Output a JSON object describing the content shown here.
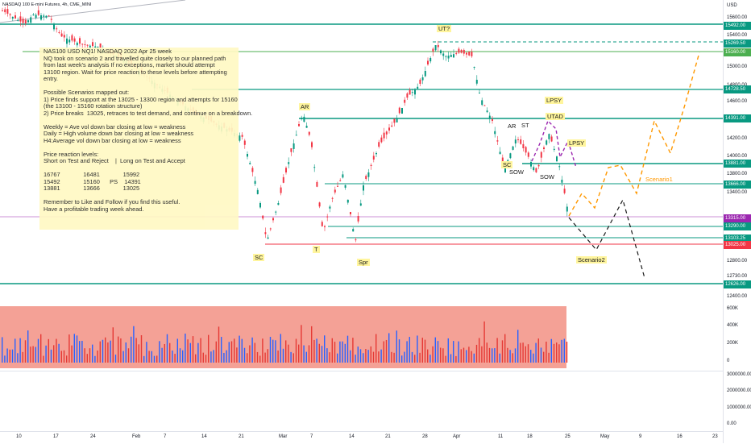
{
  "header": {
    "title": "NASDAQ 100 E-mini Futures, 4h, CME_MINI",
    "currency": "USD"
  },
  "note": {
    "title": "NAS100 USD NQ1! NASDAQ 2022 Apr 25 week",
    "body": "NQ took on scenario 2 and travelled quite closely to our planned path\nfrom last week's analysis If no exceptions, market should attempt\n13100 region. Wait for price reaction to these levels before attempting\nentry.\n\nPossible Scenarios mapped out:\n1) Price finds support at the 13025 - 13300 region and attempts for 15160\n(the 13100 - 15160 rotation structure)\n2) Price breaks  13025, retraces to test demand, and continue on a breakdown.\n\nWeekly = Ave vol down bar closing at low = weakness\nDaily = High volume down bar closing at low = weakness\nH4:Average vol down bar closing at low = weakness\n\nPrice reaction levels:\nShort on Test and Reject    |  Long on Test and Accept\n\n16767              16481              15992\n15492              15160      PS    14391\n13881              13666              13025\n\nRemember to Like and Follow if you find this useful.\nHave a profitable trading week ahead."
  },
  "price_axis": {
    "ticks": [
      "15600.00",
      "15400.00",
      "15000.00",
      "14800.00",
      "14600.00",
      "14200.00",
      "14000.00",
      "13800.00",
      "13400.00",
      "12800.00",
      "12730.00",
      "12600.00",
      "12400.00"
    ]
  },
  "price_tags": [
    {
      "label": "15492.00",
      "color": "#089981"
    },
    {
      "label": "15269.50",
      "color": "#089981"
    },
    {
      "label": "15160.00",
      "color": "#4caf50"
    },
    {
      "label": "14728.50",
      "color": "#089981"
    },
    {
      "label": "14391.00",
      "color": "#089981"
    },
    {
      "label": "13881.00",
      "color": "#089981"
    },
    {
      "label": "13666.00",
      "color": "#089981"
    },
    {
      "label": "13315.00",
      "color": "#9c27b0"
    },
    {
      "label": "13290.00",
      "color": "#089981"
    },
    {
      "label": "13103.25",
      "color": "#089981"
    },
    {
      "label": "13025.00",
      "color": "#f23645"
    },
    {
      "label": "12626.00",
      "color": "#089981"
    }
  ],
  "volume_axis": [
    "600K",
    "400K",
    "200K",
    "0"
  ],
  "lower_axis": [
    "3000000.00",
    "2000000.00",
    "1000000.00",
    "0.00"
  ],
  "time_axis": [
    "10",
    "17",
    "24",
    "Feb",
    "7",
    "14",
    "21",
    "Mar",
    "7",
    "14",
    "21",
    "28",
    "Apr",
    "11",
    "18",
    "25",
    "May",
    "9",
    "16",
    "23"
  ],
  "annotations": {
    "ut": "UT?",
    "lpsy1": "LPSY",
    "utad": "UTAD",
    "lpsy2": "LPSY",
    "ar1": "AR",
    "ar2": "AR",
    "st": "ST",
    "sc1": "SC",
    "sc2": "SC",
    "sow1": "SOW",
    "sow2": "SOW",
    "t": "T",
    "spr": "Spr",
    "scenario1": "Scenario1",
    "scenario2": "Scenario2"
  },
  "colors": {
    "teal": "#089981",
    "green": "#4caf50",
    "red": "#f23645",
    "purple": "#9c27b0",
    "orange": "#ff9800",
    "violet": "#9c27b0",
    "note_bg": "#fff9c4"
  }
}
